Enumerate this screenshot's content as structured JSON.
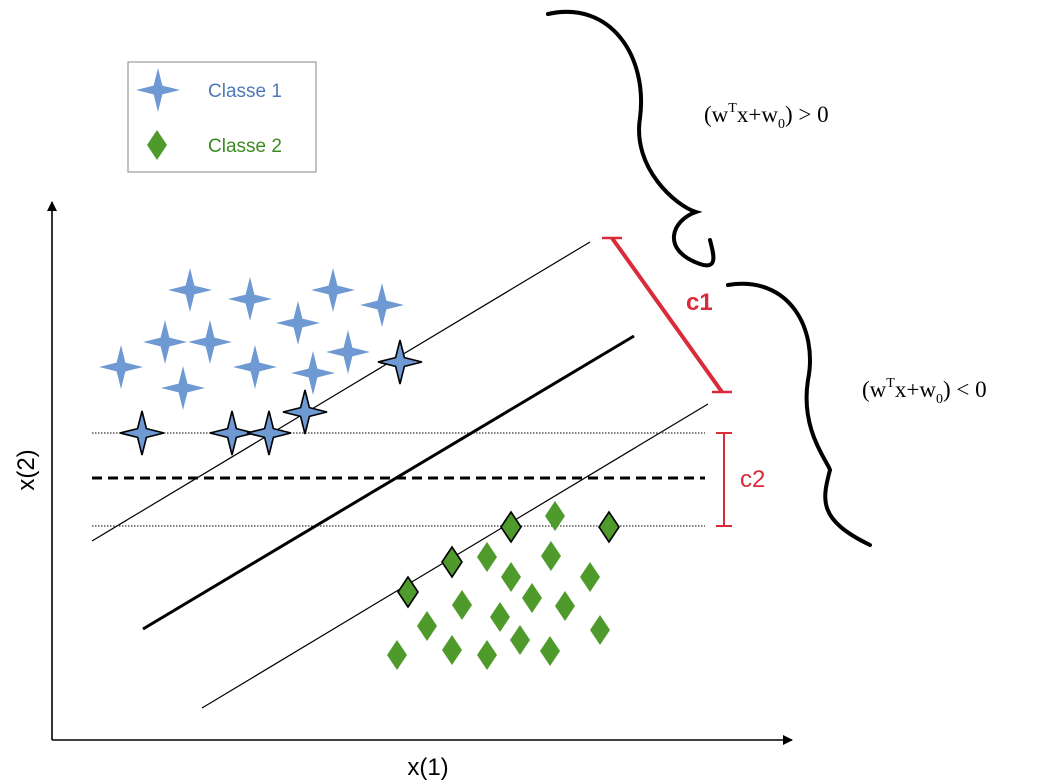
{
  "legend": {
    "items": [
      {
        "label": "Classe 1",
        "marker": "four-point-star",
        "color": "#6f99d3"
      },
      {
        "label": "Classe 2",
        "marker": "diamond",
        "color": "#4e9a2a"
      }
    ]
  },
  "axes": {
    "xlabel": "x(1)",
    "ylabel": "x(2)"
  },
  "margins": {
    "c1_label": "c1",
    "c2_label": "c2",
    "color": "#d92b3a"
  },
  "regions": {
    "positive": {
      "open": "(w",
      "sup": "T",
      "mid": "x+w",
      "sub": "0",
      "close": ") > 0"
    },
    "negative": {
      "open": "(w",
      "sup": "T",
      "mid": "x+w",
      "sub": "0",
      "close": ") < 0"
    }
  },
  "colors": {
    "class1_fill": "#6f99d3",
    "class2_fill": "#4e9a2a",
    "line": "#000000"
  }
}
